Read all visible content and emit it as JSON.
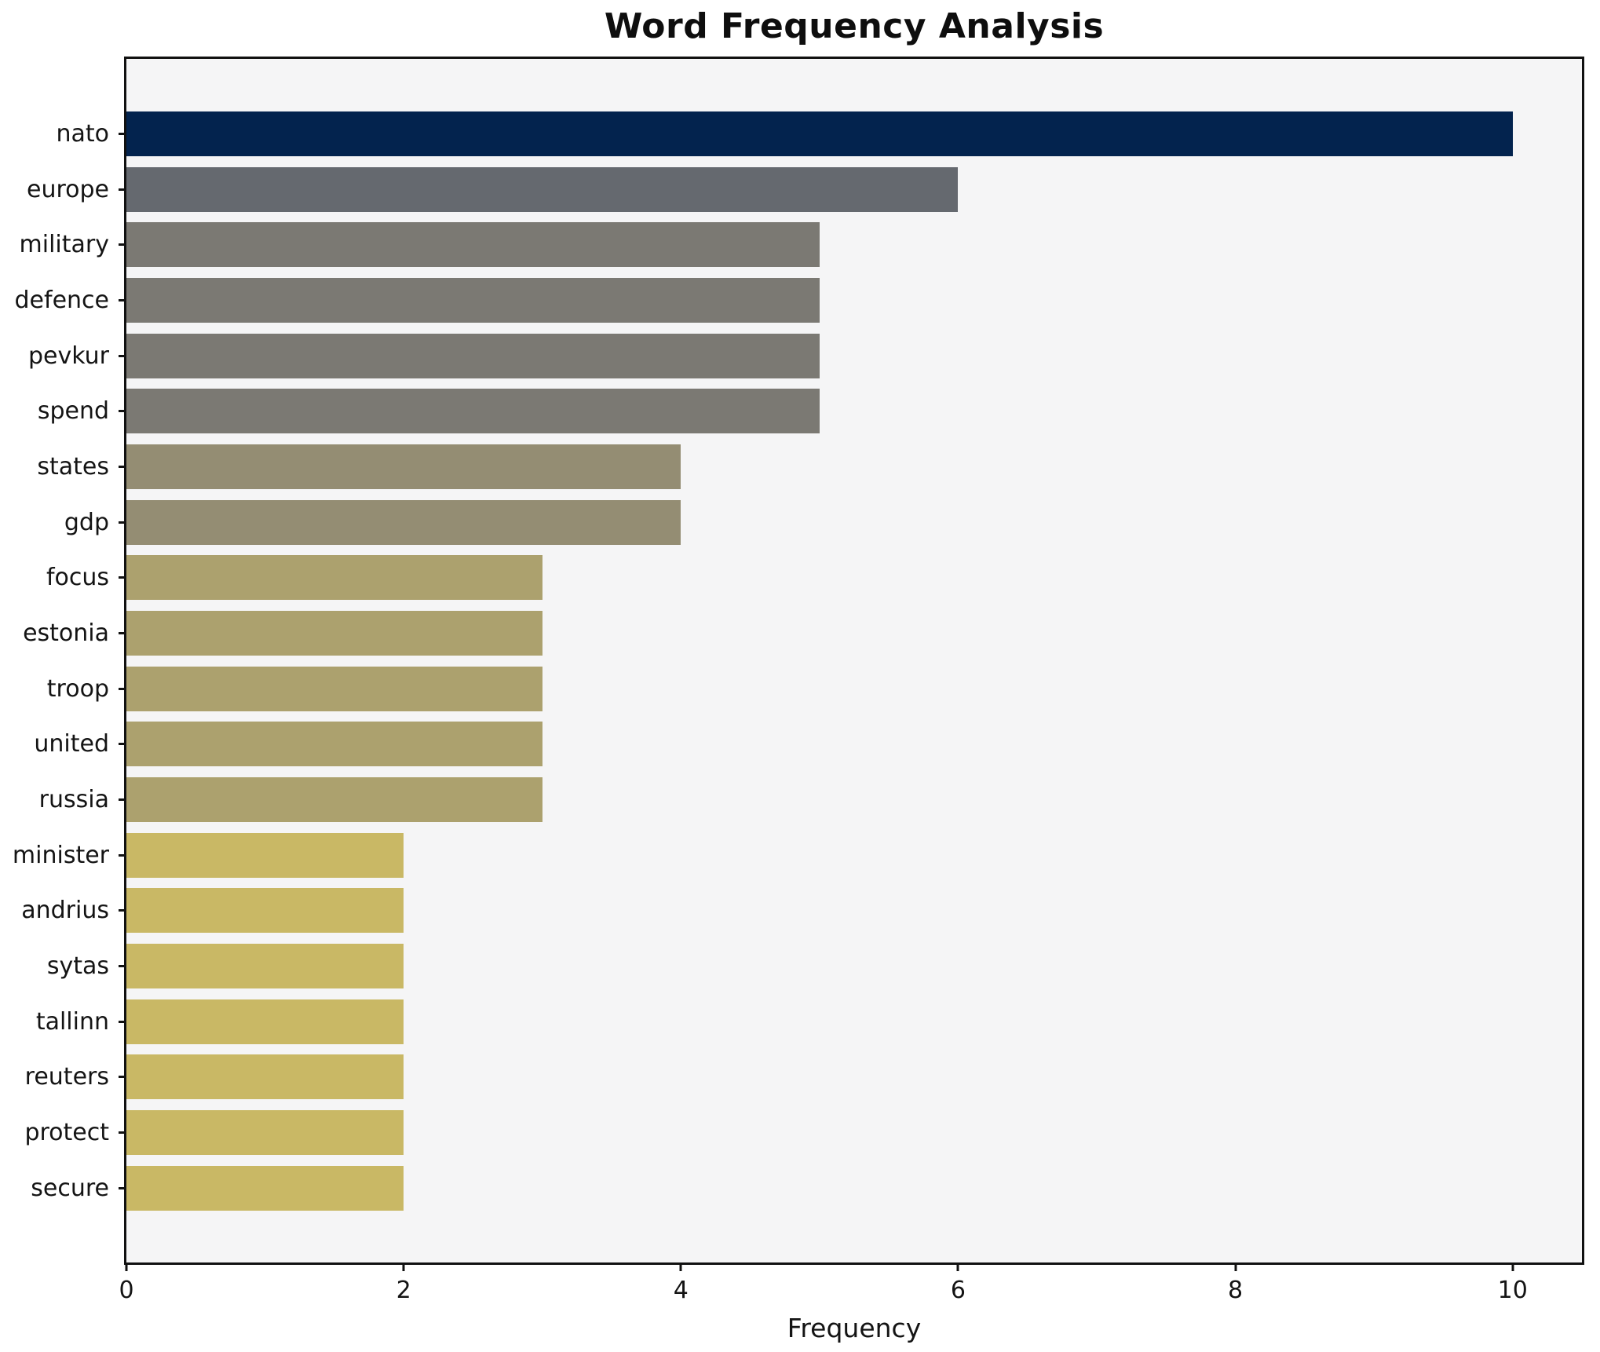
{
  "title": "Word Frequency Analysis",
  "chart_data": {
    "type": "bar",
    "orientation": "horizontal",
    "title": "Word Frequency Analysis",
    "xlabel": "Frequency",
    "ylabel": "",
    "categories": [
      "nato",
      "europe",
      "military",
      "defence",
      "pevkur",
      "spend",
      "states",
      "gdp",
      "focus",
      "estonia",
      "troop",
      "united",
      "russia",
      "minister",
      "andrius",
      "sytas",
      "tallinn",
      "reuters",
      "protect",
      "secure"
    ],
    "values": [
      10,
      6,
      5,
      5,
      5,
      5,
      4,
      4,
      3,
      3,
      3,
      3,
      3,
      2,
      2,
      2,
      2,
      2,
      2,
      2
    ],
    "bar_colors": [
      "#03234e",
      "#65696f",
      "#7b7973",
      "#7b7973",
      "#7b7973",
      "#7b7973",
      "#948d73",
      "#948d73",
      "#aca16e",
      "#aca16e",
      "#aca16e",
      "#aca16e",
      "#aca16e",
      "#c9b865",
      "#c9b865",
      "#c9b865",
      "#c9b865",
      "#c9b865",
      "#c9b865",
      "#c9b865"
    ],
    "xlim": [
      0,
      10.5
    ],
    "xticks": [
      0,
      2,
      4,
      6,
      8,
      10
    ],
    "grid": false,
    "legend": null,
    "plot_background": "#f5f5f6",
    "figure_background": "#ffffff",
    "spine_color": "#111111"
  }
}
